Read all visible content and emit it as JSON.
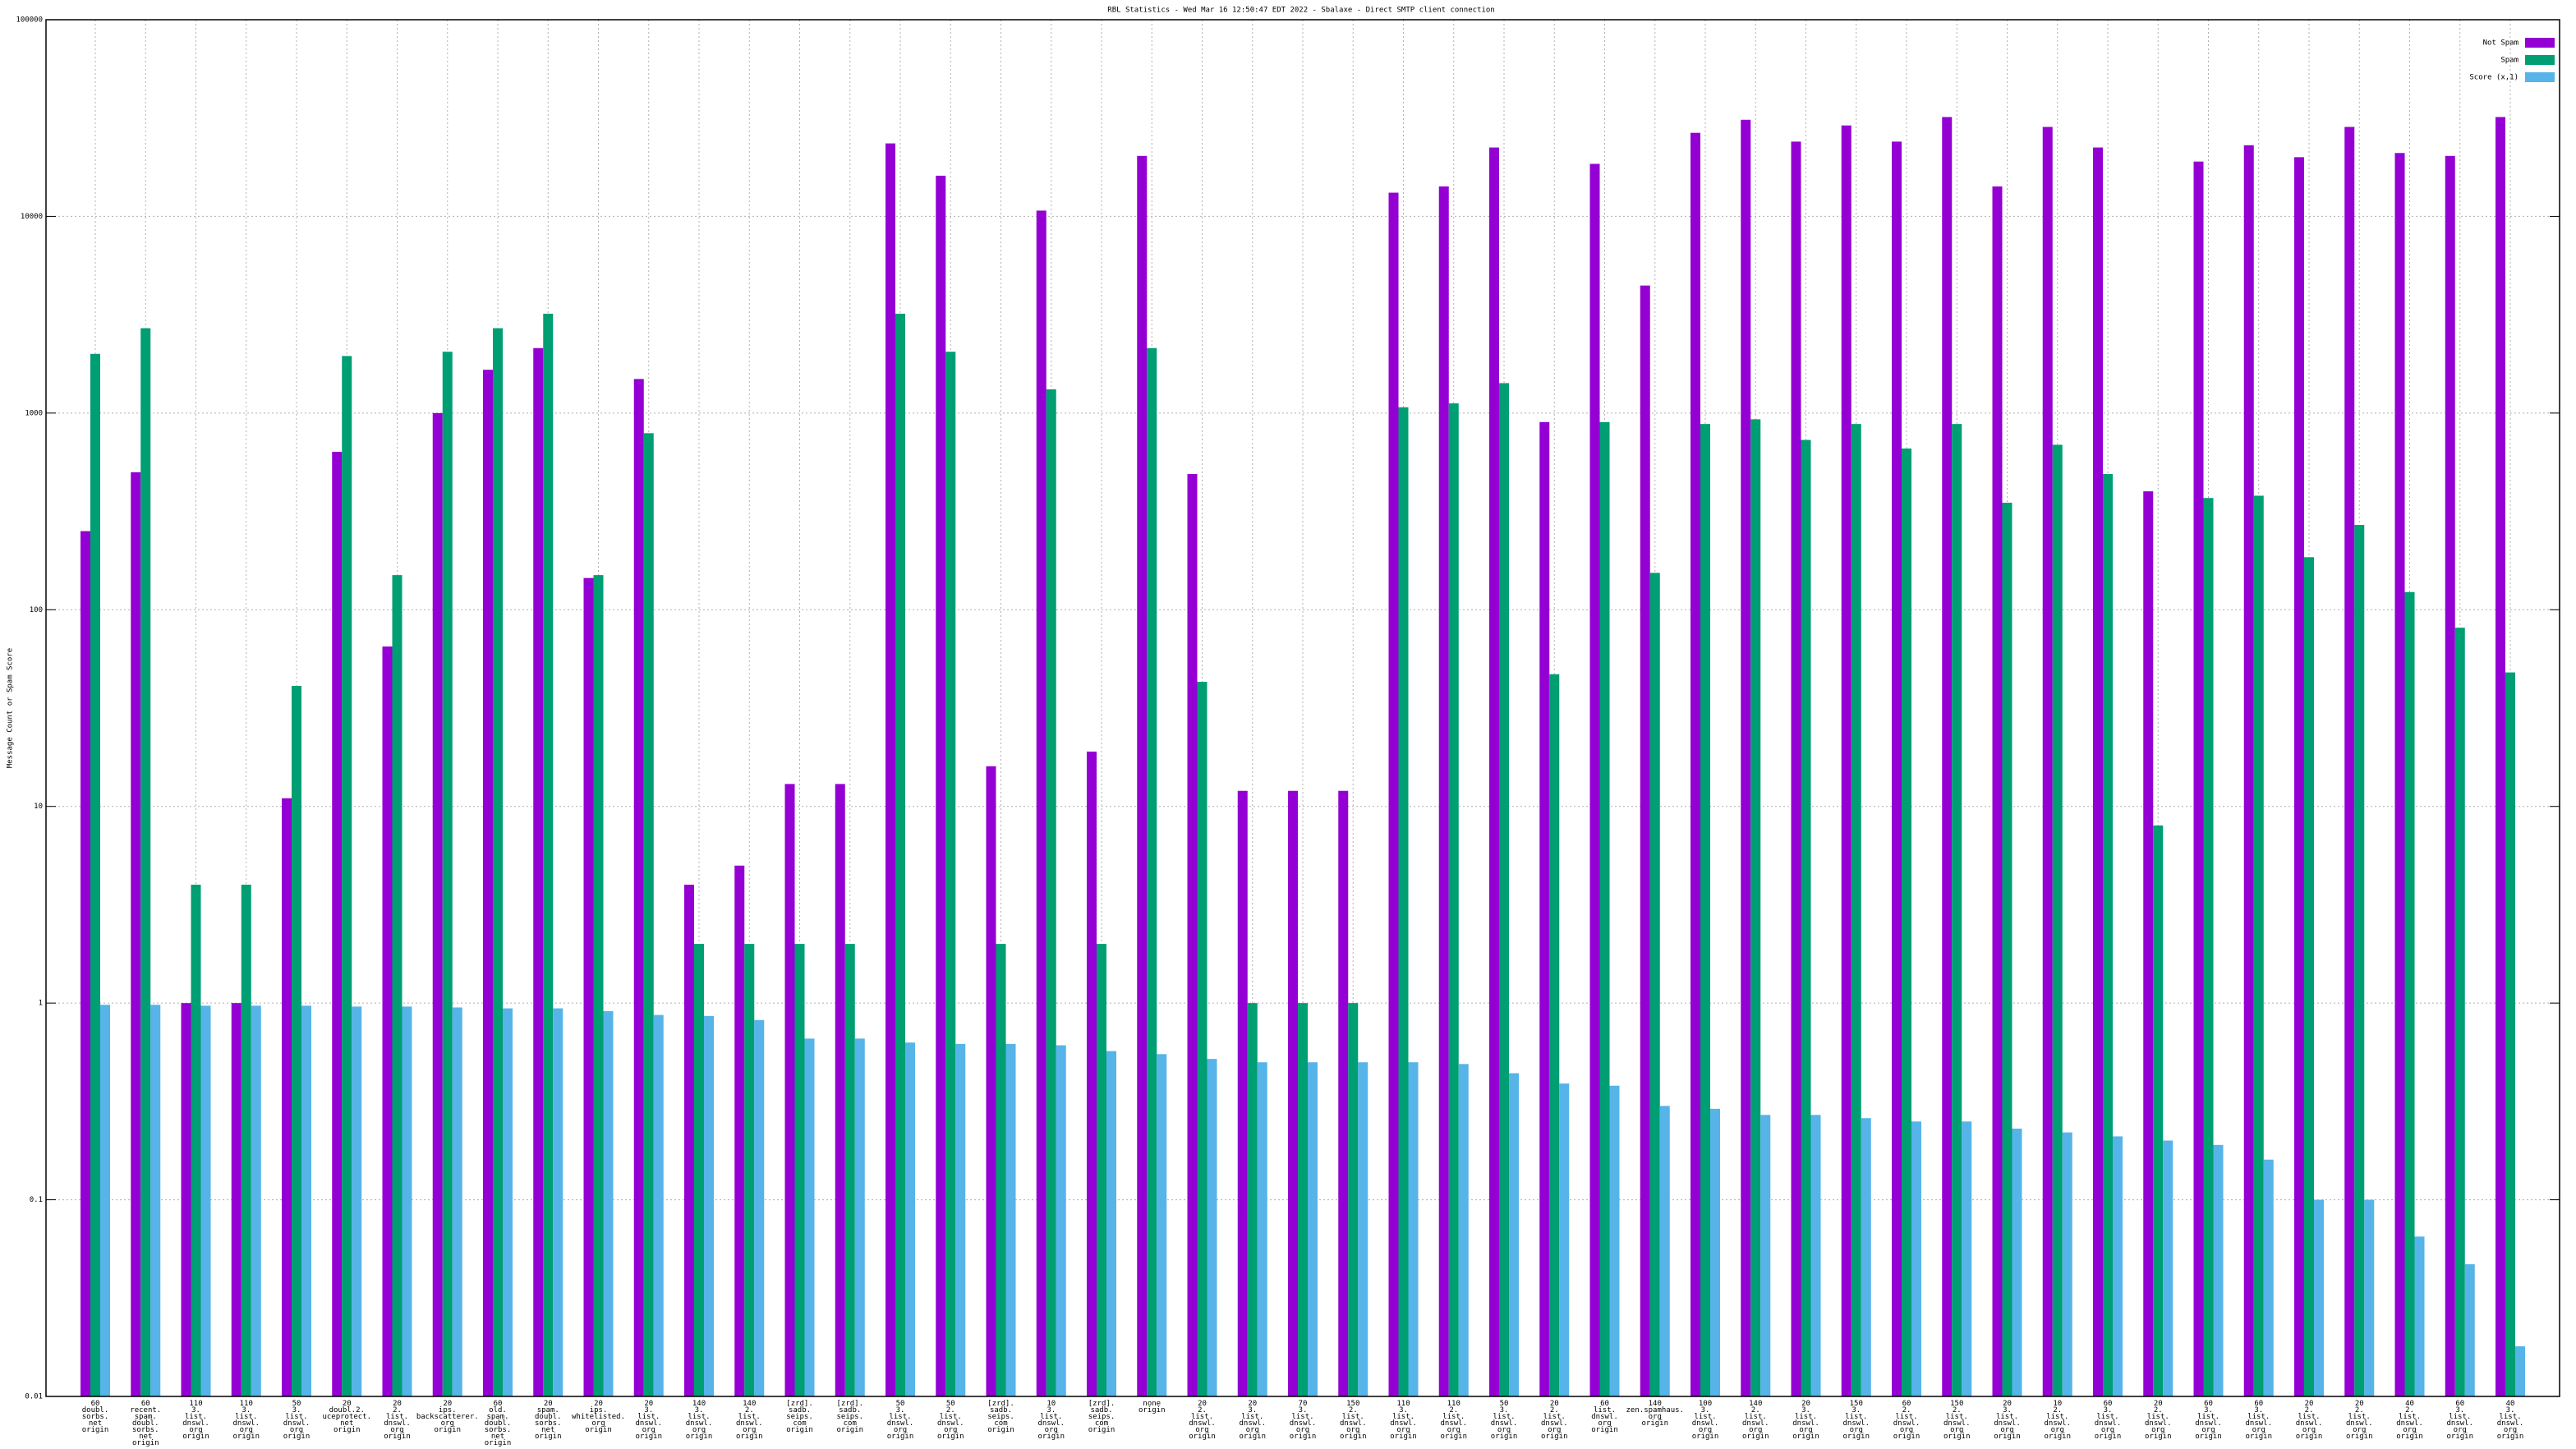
{
  "chart_data": {
    "type": "bar",
    "title": "RBL Statistics - Wed Mar 16 12:50:47 EDT 2022 - Sbalaxe - Direct SMTP client connection",
    "y_label": "Message Count or Spam Score",
    "log_scale_y": true,
    "grid": true,
    "legend": "top-right",
    "ylim": [
      0.01,
      100000
    ],
    "yticks": [
      0.01,
      0.1,
      1,
      10,
      100,
      1000,
      10000,
      100000
    ],
    "categories": [
      "60\ndoubl.\nsorbs.\nnet\norigin",
      "60\nrecent.\nspam.\ndoubl.\nsorbs.\nnet\norigin",
      "110\n3.\nlist.\ndnswl.\norg\norigin",
      "110\n3.\nlist.\ndnswl.\norg\norigin",
      "50\n3.\nlist.\ndnswl.\norg\norigin",
      "20\ndoubl.2.\nuceprotect.\nnet\norigin",
      "20\n2.\nlist.\ndnswl.\norg\norigin",
      "20\nips.\nbackscatterer.\norg\norigin",
      "60\nold.\nspam.\ndoubl.\nsorbs.\nnet\norigin",
      "20\nspam.\ndoubl.\nsorbs.\nnet\norigin",
      "20\nips.\nwhitelisted.\norg\norigin",
      "20\n3.\nlist.\ndnswl.\norg\norigin",
      "140\n3.\nlist.\ndnswl.\norg\norigin",
      "140\n2.\nlist.\ndnswl.\norg\norigin",
      "[zrd].\nsadb.\nseips.\ncom\norigin",
      "[zrd].\nsadb.\nseips.\ncom\norigin",
      "50\n3.\nlist.\ndnswl.\norg\norigin",
      "50\n2.\nlist.\ndnswl.\norg\norigin",
      "[zrd].\nsadb.\nseips.\ncom\norigin",
      "10\n3.\nlist.\ndnswl.\norg\norigin",
      "[zrd].\nsadb.\nseips.\ncom\norigin",
      "none\norigin",
      "20\n2.\nlist.\ndnswl.\norg\norigin",
      "20\n3.\nlist.\ndnswl.\norg\norigin",
      "70\n3.\nlist.\ndnswl.\norg\norigin",
      "150\n2.\nlist.\ndnswl.\norg\norigin",
      "110\n3.\nlist.\ndnswl.\norg\norigin",
      "110\n2.\nlist.\ndnswl.\norg\norigin",
      "50\n3.\nlist.\ndnswl.\norg\norigin",
      "20\n2.\nlist.\ndnswl.\norg\norigin",
      "60\nlist.\ndnswl.\norg\norigin",
      "140\nzen.spamhaus.\norg\norigin",
      "100\n3.\nlist.\ndnswl.\norg\norigin",
      "140\n2.\nlist.\ndnswl.\norg\norigin",
      "20\n3.\nlist.\ndnswl.\norg\norigin",
      "150\n3.\nlist.\ndnswl.\norg\norigin",
      "60\n2.\nlist.\ndnswl.\norg\norigin",
      "150\n2.\nlist.\ndnswl.\norg\norigin",
      "20\n3.\nlist.\ndnswl.\norg\norigin",
      "10\n2.\nlist.\ndnswl.\norg\norigin",
      "60\n3.\nlist.\ndnswl.\norg\norigin",
      "20\n2.\nlist.\ndnswl.\norg\norigin",
      "60\n3.\nlist.\ndnswl.\norg\norigin",
      "60\n3.\nlist.\ndnswl.\norg\norigin",
      "20\n2.\nlist.\ndnswl.\norg\norigin",
      "20\n2.\nlist.\ndnswl.\norg\norigin",
      "40\n2.\nlist.\ndnswl.\norg\norigin",
      "60\n3.\nlist.\ndnswl.\norg\norigin",
      "40\n3.\nlist.\ndnswl.\norg\norigin"
    ],
    "series": [
      {
        "name": "Not Spam",
        "color": "#9400d3",
        "values": [
          251,
          500,
          1,
          1,
          11,
          635,
          65,
          1000,
          1660,
          2140,
          145,
          1490,
          4,
          5,
          13,
          13,
          23500,
          16100,
          16,
          10700,
          19,
          20300,
          490,
          12,
          12,
          12,
          13200,
          14200,
          22400,
          900,
          18500,
          4450,
          26600,
          31000,
          24000,
          29000,
          24000,
          32000,
          14200,
          28500,
          22400,
          400,
          19000,
          23000,
          20000,
          28500,
          21000,
          20300,
          32000
        ]
      },
      {
        "name": "Spam",
        "color": "#009e73",
        "values": [
          2000,
          2700,
          4,
          4,
          41,
          1950,
          150,
          2050,
          2700,
          3200,
          150,
          790,
          2,
          2,
          2,
          2,
          3200,
          2050,
          2,
          1320,
          2,
          2140,
          43,
          1,
          1,
          1,
          1070,
          1120,
          1420,
          47,
          900,
          154,
          880,
          930,
          730,
          880,
          660,
          880,
          350,
          690,
          490,
          8,
          370,
          380,
          185,
          270,
          123,
          81,
          48
        ]
      },
      {
        "name": "Score (x,1)",
        "color": "#56b4e9",
        "values": [
          0.98,
          0.98,
          0.97,
          0.97,
          0.97,
          0.96,
          0.96,
          0.95,
          0.94,
          0.94,
          0.91,
          0.87,
          0.86,
          0.82,
          0.66,
          0.66,
          0.63,
          0.62,
          0.62,
          0.61,
          0.57,
          0.55,
          0.52,
          0.5,
          0.5,
          0.5,
          0.5,
          0.49,
          0.44,
          0.39,
          0.38,
          0.3,
          0.29,
          0.27,
          0.27,
          0.26,
          0.25,
          0.25,
          0.23,
          0.22,
          0.21,
          0.2,
          0.19,
          0.16,
          0.1,
          0.1,
          0.065,
          0.047,
          0.018
        ]
      }
    ]
  }
}
